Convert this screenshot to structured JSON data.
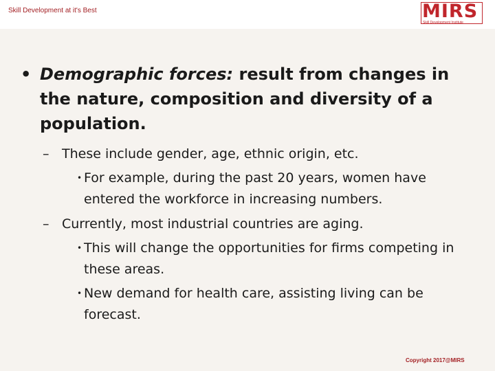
{
  "header": {
    "tagline": "Skill Development at it's Best",
    "logo_text": "MIRS",
    "logo_subtext": "Skill Development Institute"
  },
  "slide": {
    "main_bullet": {
      "term": "Demographic forces:",
      "text": " result from changes in the nature, composition and diversity of a population."
    },
    "items": [
      {
        "text": "These include gender, age, ethnic origin, etc.",
        "sub": [
          "For example, during the past 20 years, women have entered the workforce in increasing numbers."
        ]
      },
      {
        "text": "Currently, most industrial  countries are aging.",
        "sub": [
          "This will change the opportunities for firms competing in these areas.",
          "New demand for health care, assisting living can be forecast."
        ]
      }
    ]
  },
  "footer": {
    "copyright": "Copyright 2017@MIRS"
  },
  "colors": {
    "brand_red": "#c0262c",
    "background": "#f6f3ef"
  }
}
